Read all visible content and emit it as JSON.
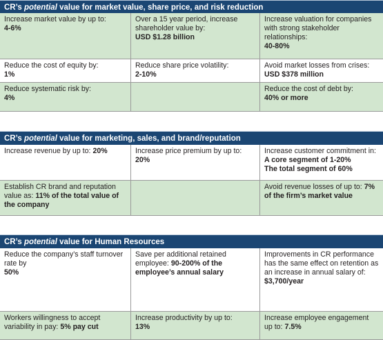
{
  "sections": [
    {
      "title": {
        "prefix": "CR’s ",
        "emphasis": "potential",
        "suffix": " value for market value, share price, and risk reduction"
      },
      "rows": [
        [
          {
            "label": "Increase market value by up to:",
            "values": [
              "4-6%"
            ]
          },
          {
            "label": "Over a 15 year period, increase shareholder value by:",
            "values": [
              "USD $1.28 billion"
            ]
          },
          {
            "label": "Increase valuation for companies with strong stakeholder relationships:",
            "values": [
              "40-80%"
            ]
          }
        ],
        [
          {
            "label": "Reduce the cost of equity by:",
            "values": [
              "1%"
            ]
          },
          {
            "label": "Reduce share price volatility:",
            "values": [
              "2-10%"
            ]
          },
          {
            "label": "Avoid market losses from crises:",
            "values": [
              "USD $378 million"
            ]
          }
        ],
        [
          {
            "label": "Reduce systematic risk by:",
            "values": [
              "4%"
            ]
          },
          null,
          {
            "label": "Reduce the cost of debt by:",
            "values": [
              "40% or more"
            ]
          }
        ]
      ]
    },
    {
      "title": {
        "prefix": "CR’s ",
        "emphasis": "potential",
        "suffix": " value for marketing, sales, and brand/reputation"
      },
      "rows": [
        [
          {
            "label": "Increase revenue by up to:",
            "values": [
              "20%"
            ],
            "inline": true
          },
          {
            "label": "Increase price premium by up to:",
            "values": [
              "20%"
            ]
          },
          {
            "label": "Increase customer commitment in:",
            "values": [
              "A core segment of 1-20%",
              "The total segment of 60%"
            ]
          }
        ],
        [
          {
            "label": "Establish CR brand and reputation value as:",
            "values": [
              "11% of the total value of the company"
            ],
            "inline": true
          },
          null,
          {
            "label": "Avoid revenue losses of up to:",
            "values": [
              "7% of the firm’s market value"
            ],
            "inline": true
          }
        ]
      ]
    },
    {
      "title": {
        "prefix": "CR’s ",
        "emphasis": "potential",
        "suffix": " value for Human Resources"
      },
      "rows": [
        [
          {
            "label": "Reduce the company’s staff turnover rate by",
            "values": [
              "50%"
            ]
          },
          {
            "label": "Save per additional retained employee:",
            "values": [
              "90-200% of the employee’s annual salary"
            ],
            "inline": true
          },
          {
            "label": "Improvements in CR performance has the same effect on retention as an increase in annual salary of:",
            "values": [
              "$3,700/year"
            ]
          }
        ],
        [
          {
            "label": "Workers willingness to accept variability in pay:",
            "values": [
              "5% pay cut"
            ],
            "inline": true
          },
          {
            "label": "Increase productivity by up to:",
            "values": [
              "13%"
            ]
          },
          {
            "label": "Increase employee engagement up to:",
            "values": [
              "7.5%"
            ],
            "inline": true
          }
        ]
      ]
    }
  ]
}
